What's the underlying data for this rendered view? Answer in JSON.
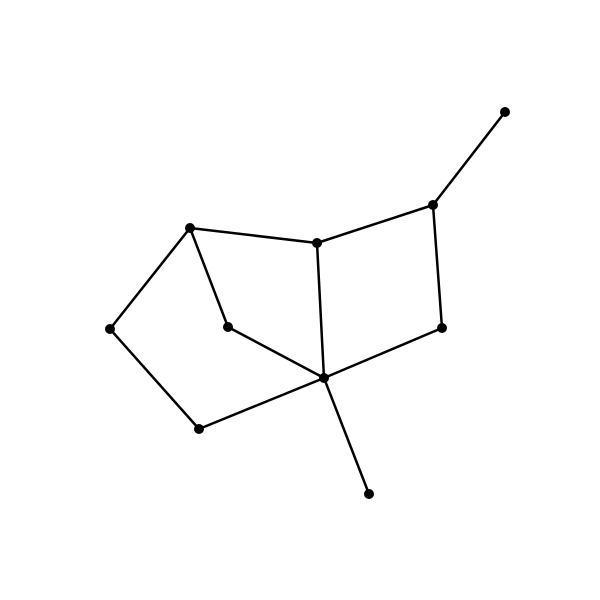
{
  "graph": {
    "style": {
      "edge_color": "#000000",
      "node_color": "#000000"
    },
    "nodes": [
      {
        "id": "n1"
      },
      {
        "id": "n2"
      },
      {
        "id": "n3"
      },
      {
        "id": "n4"
      },
      {
        "id": "n5"
      },
      {
        "id": "n6"
      },
      {
        "id": "n7"
      },
      {
        "id": "n8"
      },
      {
        "id": "n9"
      },
      {
        "id": "n10"
      }
    ],
    "edges": [
      [
        "n1",
        "n2"
      ],
      [
        "n2",
        "n3"
      ],
      [
        "n2",
        "n4"
      ],
      [
        "n3",
        "n5"
      ],
      [
        "n5",
        "n6"
      ],
      [
        "n6",
        "n7"
      ],
      [
        "n6",
        "n10"
      ],
      [
        "n6",
        "n4"
      ],
      [
        "n4",
        "n7"
      ],
      [
        "n5",
        "n8"
      ],
      [
        "n8",
        "n9"
      ],
      [
        "n9",
        "n6"
      ]
    ]
  }
}
